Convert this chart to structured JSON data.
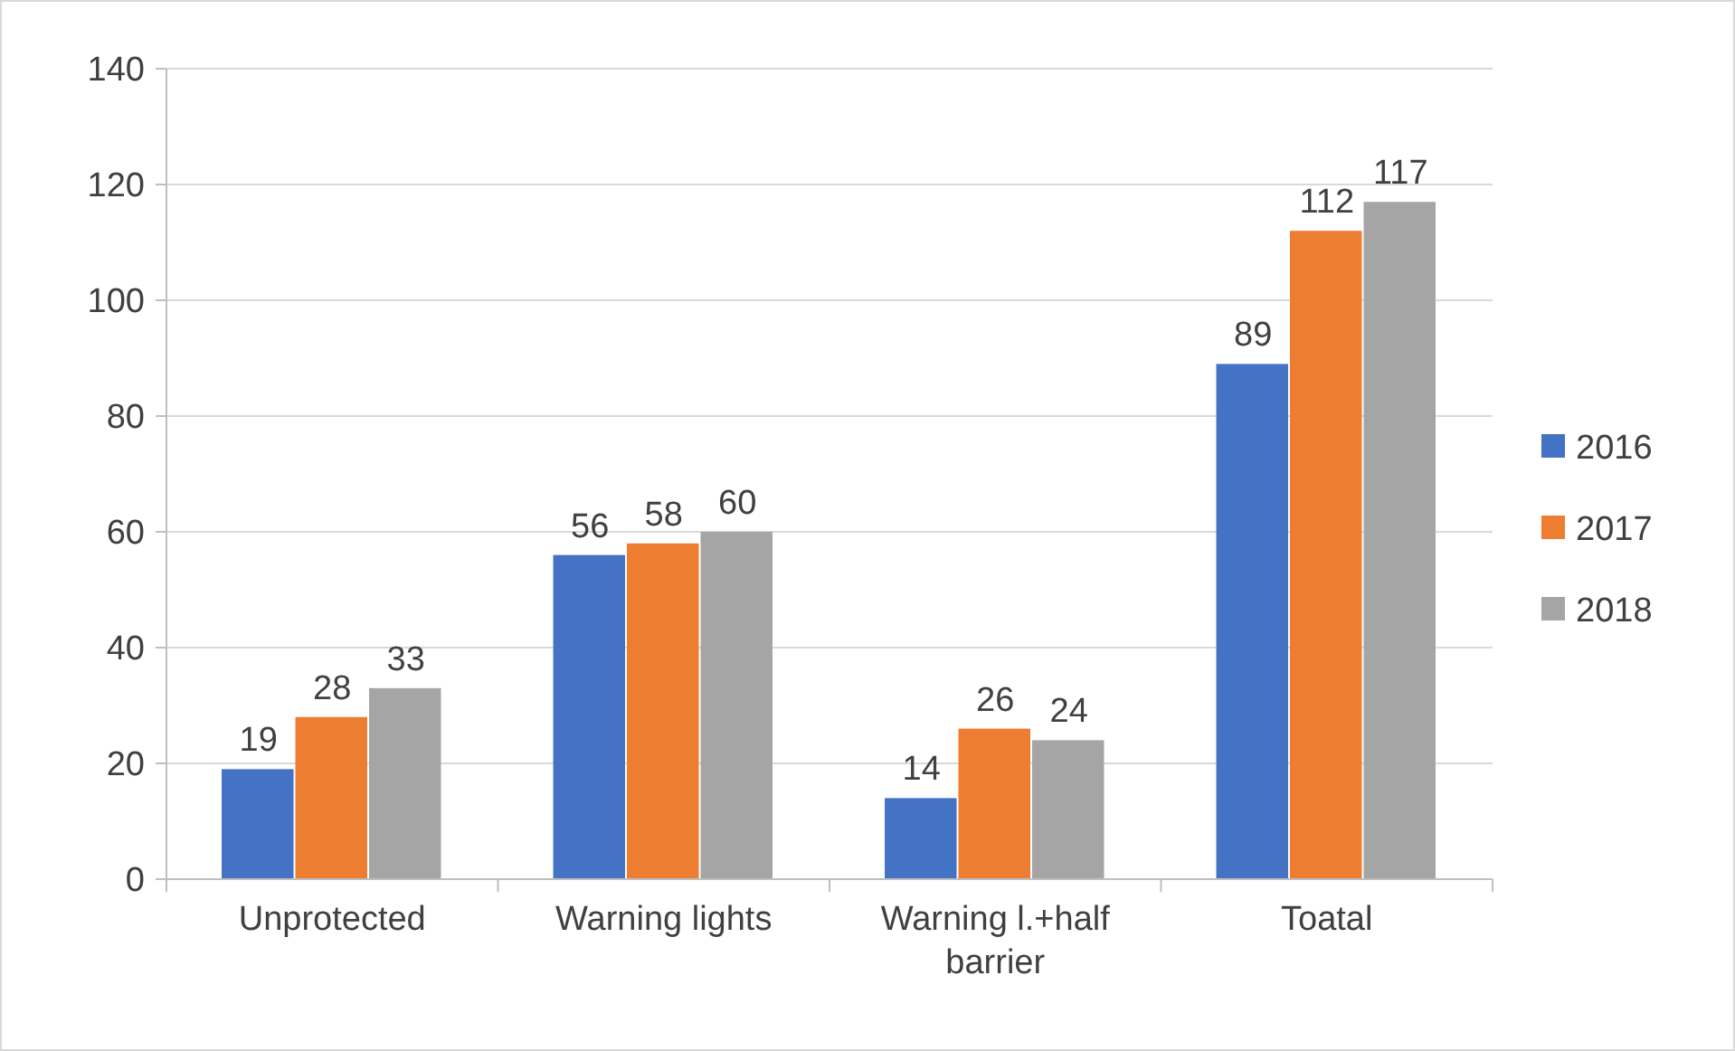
{
  "chart_data": {
    "type": "bar",
    "categories": [
      "Unprotected",
      "Warning lights",
      "Warning l.+half barrier",
      "Toatal"
    ],
    "series": [
      {
        "name": "2016",
        "color": "#4472c4",
        "values": [
          19,
          56,
          14,
          89
        ]
      },
      {
        "name": "2017",
        "color": "#ed7d31",
        "values": [
          28,
          58,
          26,
          112
        ]
      },
      {
        "name": "2018",
        "color": "#a5a5a5",
        "values": [
          33,
          60,
          24,
          117
        ]
      }
    ],
    "ylim": [
      0,
      140
    ],
    "yticks": [
      0,
      20,
      40,
      60,
      80,
      100,
      120,
      140
    ],
    "grid": "y",
    "legend": "right",
    "data_labels": true
  }
}
